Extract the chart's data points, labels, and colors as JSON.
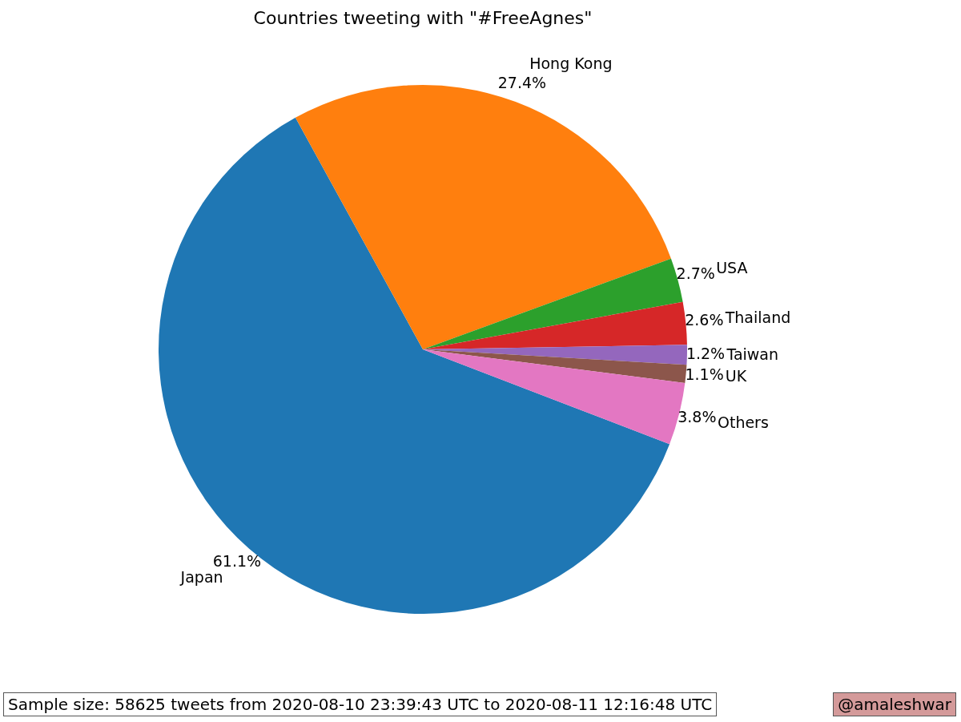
{
  "chart_data": {
    "type": "pie",
    "title": "Countries tweeting with \"#FreeAgnes\"",
    "categories": [
      "Japan",
      "Hong Kong",
      "USA",
      "Thailand",
      "Taiwan",
      "UK",
      "Others"
    ],
    "values": [
      61.1,
      27.4,
      2.7,
      2.6,
      1.2,
      1.1,
      3.8
    ],
    "value_labels": [
      "61.1%",
      "27.4%",
      "2.7%",
      "2.6%",
      "1.2%",
      "1.1%",
      "3.8%"
    ],
    "colors": [
      "#1f77b4",
      "#ff7f0e",
      "#2ca02c",
      "#d62728",
      "#9467bd",
      "#8c564b",
      "#e377c2"
    ],
    "annotations": [
      "Sample size: 58625 tweets from 2020-08-10 23:39:43 UTC to 2020-08-11 12:16:48 UTC",
      "@amaleshwar"
    ]
  }
}
